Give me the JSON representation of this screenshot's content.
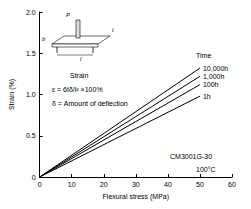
{
  "chart_data": {
    "type": "line",
    "x_label": "Flexural stress (MPa)",
    "y_label": "Strain (%)",
    "x": [
      0,
      50
    ],
    "series": [
      {
        "name": "10,000h",
        "color": "#000000",
        "values": [
          0,
          1.32
        ]
      },
      {
        "name": "1,000h",
        "color": "#000000",
        "values": [
          0,
          1.22
        ]
      },
      {
        "name": "100h",
        "color": "#000000",
        "values": [
          0,
          1.12
        ]
      },
      {
        "name": "1h",
        "color": "#000000",
        "values": [
          0,
          0.98
        ]
      }
    ],
    "xlim": [
      0,
      60
    ],
    "xticks": [
      0,
      10,
      20,
      30,
      40,
      50,
      60
    ],
    "ylim": [
      0,
      2.0
    ],
    "yticks": [
      0,
      0.5,
      {
        "value": 1.0,
        "label": "1.0"
      },
      1.5,
      {
        "value": 2.0,
        "label": "2.0"
      }
    ],
    "grid": false,
    "annotations": [
      {
        "text": "Time"
      },
      {
        "text": "Strain"
      },
      {
        "text": "ε = 6tδ/l² ×100%"
      },
      {
        "text": "δ = Amount of deflection"
      },
      {
        "text": "CM3001G-30"
      },
      {
        "text": "100°C"
      },
      {
        "text": "P"
      },
      {
        "text": "b"
      },
      {
        "text": "t"
      },
      {
        "text": "l"
      }
    ]
  }
}
